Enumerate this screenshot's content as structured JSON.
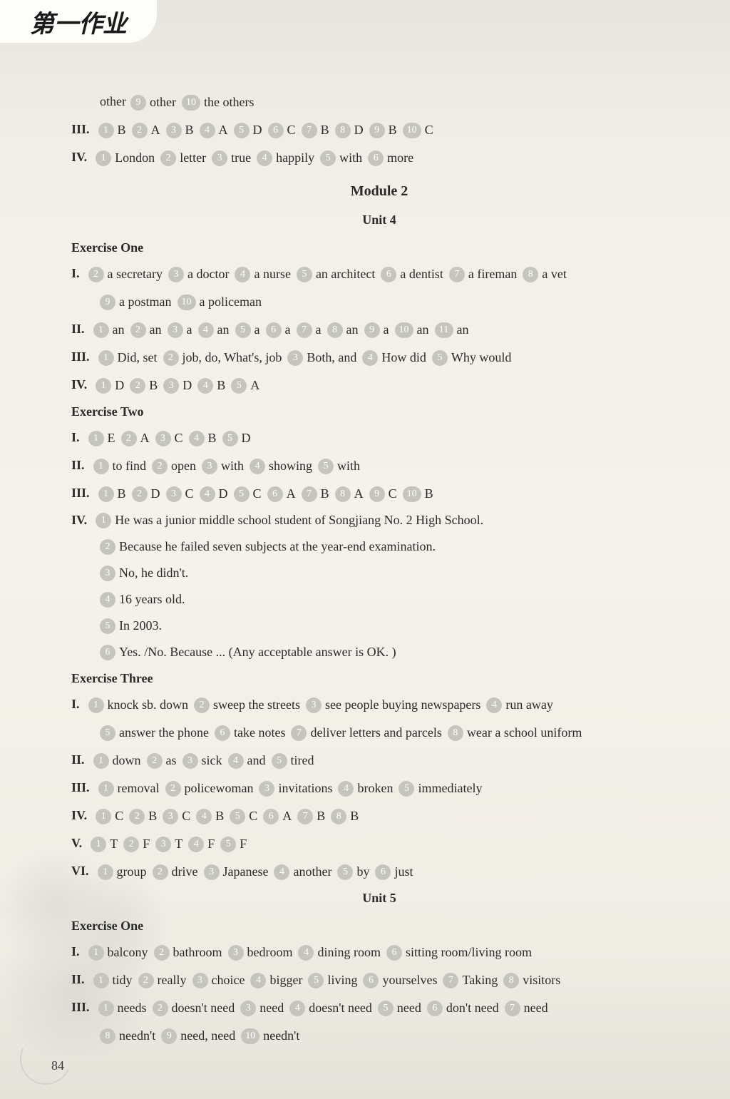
{
  "header": {
    "title": "第一作业"
  },
  "page_number": "84",
  "carryover": {
    "line1_prefix": "other",
    "line1_items": [
      {
        "n": "9",
        "t": "other"
      },
      {
        "n": "10",
        "t": "the others"
      }
    ],
    "iii": {
      "label": "III.",
      "items": [
        {
          "n": "1",
          "t": "B"
        },
        {
          "n": "2",
          "t": "A"
        },
        {
          "n": "3",
          "t": "B"
        },
        {
          "n": "4",
          "t": "A"
        },
        {
          "n": "5",
          "t": "D"
        },
        {
          "n": "6",
          "t": "C"
        },
        {
          "n": "7",
          "t": "B"
        },
        {
          "n": "8",
          "t": "D"
        },
        {
          "n": "9",
          "t": "B"
        },
        {
          "n": "10",
          "t": "C"
        }
      ]
    },
    "iv": {
      "label": "IV.",
      "items": [
        {
          "n": "1",
          "t": "London"
        },
        {
          "n": "2",
          "t": "letter"
        },
        {
          "n": "3",
          "t": "true"
        },
        {
          "n": "4",
          "t": "happily"
        },
        {
          "n": "5",
          "t": "with"
        },
        {
          "n": "6",
          "t": "more"
        }
      ]
    }
  },
  "module2": {
    "title": "Module 2",
    "unit4": {
      "title": "Unit 4",
      "ex1": {
        "title": "Exercise One",
        "i": {
          "label": "I.",
          "row1": [
            {
              "n": "2",
              "t": "a secretary"
            },
            {
              "n": "3",
              "t": "a doctor"
            },
            {
              "n": "4",
              "t": "a nurse"
            },
            {
              "n": "5",
              "t": "an architect"
            },
            {
              "n": "6",
              "t": "a dentist"
            },
            {
              "n": "7",
              "t": "a fireman"
            },
            {
              "n": "8",
              "t": "a vet"
            }
          ],
          "row2": [
            {
              "n": "9",
              "t": "a postman"
            },
            {
              "n": "10",
              "t": "a policeman"
            }
          ]
        },
        "ii": {
          "label": "II.",
          "items": [
            {
              "n": "1",
              "t": "an"
            },
            {
              "n": "2",
              "t": "an"
            },
            {
              "n": "3",
              "t": "a"
            },
            {
              "n": "4",
              "t": "an"
            },
            {
              "n": "5",
              "t": "a"
            },
            {
              "n": "6",
              "t": "a"
            },
            {
              "n": "7",
              "t": "a"
            },
            {
              "n": "8",
              "t": "an"
            },
            {
              "n": "9",
              "t": "a"
            },
            {
              "n": "10",
              "t": "an"
            },
            {
              "n": "11",
              "t": "an"
            }
          ]
        },
        "iii": {
          "label": "III.",
          "items": [
            {
              "n": "1",
              "t": "Did, set"
            },
            {
              "n": "2",
              "t": "job, do, What's, job"
            },
            {
              "n": "3",
              "t": "Both, and"
            },
            {
              "n": "4",
              "t": "How did"
            },
            {
              "n": "5",
              "t": "Why would"
            }
          ]
        },
        "iv": {
          "label": "IV.",
          "items": [
            {
              "n": "1",
              "t": "D"
            },
            {
              "n": "2",
              "t": "B"
            },
            {
              "n": "3",
              "t": "D"
            },
            {
              "n": "4",
              "t": "B"
            },
            {
              "n": "5",
              "t": "A"
            }
          ]
        }
      },
      "ex2": {
        "title": "Exercise Two",
        "i": {
          "label": "I.",
          "items": [
            {
              "n": "1",
              "t": "E"
            },
            {
              "n": "2",
              "t": "A"
            },
            {
              "n": "3",
              "t": "C"
            },
            {
              "n": "4",
              "t": "B"
            },
            {
              "n": "5",
              "t": "D"
            }
          ]
        },
        "ii": {
          "label": "II.",
          "items": [
            {
              "n": "1",
              "t": "to find"
            },
            {
              "n": "2",
              "t": "open"
            },
            {
              "n": "3",
              "t": "with"
            },
            {
              "n": "4",
              "t": "showing"
            },
            {
              "n": "5",
              "t": "with"
            }
          ]
        },
        "iii": {
          "label": "III.",
          "items": [
            {
              "n": "1",
              "t": "B"
            },
            {
              "n": "2",
              "t": "D"
            },
            {
              "n": "3",
              "t": "C"
            },
            {
              "n": "4",
              "t": "D"
            },
            {
              "n": "5",
              "t": "C"
            },
            {
              "n": "6",
              "t": "A"
            },
            {
              "n": "7",
              "t": "B"
            },
            {
              "n": "8",
              "t": "A"
            },
            {
              "n": "9",
              "t": "C"
            },
            {
              "n": "10",
              "t": "B"
            }
          ]
        },
        "iv": {
          "label": "IV.",
          "items": [
            {
              "n": "1",
              "t": "He was a junior middle school student of Songjiang No. 2 High School."
            },
            {
              "n": "2",
              "t": "Because he failed seven subjects at the year-end examination."
            },
            {
              "n": "3",
              "t": "No, he didn't."
            },
            {
              "n": "4",
              "t": "16 years old."
            },
            {
              "n": "5",
              "t": "In 2003."
            },
            {
              "n": "6",
              "t": "Yes. /No. Because ... (Any acceptable answer is OK. )"
            }
          ]
        }
      },
      "ex3": {
        "title": "Exercise Three",
        "i": {
          "label": "I.",
          "row1": [
            {
              "n": "1",
              "t": "knock sb. down"
            },
            {
              "n": "2",
              "t": "sweep the streets"
            },
            {
              "n": "3",
              "t": "see people buying newspapers"
            },
            {
              "n": "4",
              "t": "run away"
            }
          ],
          "row2": [
            {
              "n": "5",
              "t": "answer the phone"
            },
            {
              "n": "6",
              "t": "take notes"
            },
            {
              "n": "7",
              "t": "deliver letters and parcels"
            },
            {
              "n": "8",
              "t": "wear a school uniform"
            }
          ]
        },
        "ii": {
          "label": "II.",
          "items": [
            {
              "n": "1",
              "t": "down"
            },
            {
              "n": "2",
              "t": "as"
            },
            {
              "n": "3",
              "t": "sick"
            },
            {
              "n": "4",
              "t": "and"
            },
            {
              "n": "5",
              "t": "tired"
            }
          ]
        },
        "iii": {
          "label": "III.",
          "items": [
            {
              "n": "1",
              "t": "removal"
            },
            {
              "n": "2",
              "t": "policewoman"
            },
            {
              "n": "3",
              "t": "invitations"
            },
            {
              "n": "4",
              "t": "broken"
            },
            {
              "n": "5",
              "t": "immediately"
            }
          ]
        },
        "iv": {
          "label": "IV.",
          "items": [
            {
              "n": "1",
              "t": "C"
            },
            {
              "n": "2",
              "t": "B"
            },
            {
              "n": "3",
              "t": "C"
            },
            {
              "n": "4",
              "t": "B"
            },
            {
              "n": "5",
              "t": "C"
            },
            {
              "n": "6",
              "t": "A"
            },
            {
              "n": "7",
              "t": "B"
            },
            {
              "n": "8",
              "t": "B"
            }
          ]
        },
        "v": {
          "label": "V.",
          "items": [
            {
              "n": "1",
              "t": "T"
            },
            {
              "n": "2",
              "t": "F"
            },
            {
              "n": "3",
              "t": "T"
            },
            {
              "n": "4",
              "t": "F"
            },
            {
              "n": "5",
              "t": "F"
            }
          ]
        },
        "vi": {
          "label": "VI.",
          "items": [
            {
              "n": "1",
              "t": "group"
            },
            {
              "n": "2",
              "t": "drive"
            },
            {
              "n": "3",
              "t": "Japanese"
            },
            {
              "n": "4",
              "t": "another"
            },
            {
              "n": "5",
              "t": "by"
            },
            {
              "n": "6",
              "t": "just"
            }
          ]
        }
      }
    },
    "unit5": {
      "title": "Unit 5",
      "ex1": {
        "title": "Exercise One",
        "i": {
          "label": "I.",
          "items": [
            {
              "n": "1",
              "t": "balcony"
            },
            {
              "n": "2",
              "t": "bathroom"
            },
            {
              "n": "3",
              "t": "bedroom"
            },
            {
              "n": "4",
              "t": "dining room"
            },
            {
              "n": "6",
              "t": "sitting room/living room"
            }
          ]
        },
        "ii": {
          "label": "II.",
          "items": [
            {
              "n": "1",
              "t": "tidy"
            },
            {
              "n": "2",
              "t": "really"
            },
            {
              "n": "3",
              "t": "choice"
            },
            {
              "n": "4",
              "t": "bigger"
            },
            {
              "n": "5",
              "t": "living"
            },
            {
              "n": "6",
              "t": "yourselves"
            },
            {
              "n": "7",
              "t": "Taking"
            },
            {
              "n": "8",
              "t": "visitors"
            }
          ]
        },
        "iii": {
          "label": "III.",
          "row1": [
            {
              "n": "1",
              "t": "needs"
            },
            {
              "n": "2",
              "t": "doesn't need"
            },
            {
              "n": "3",
              "t": "need"
            },
            {
              "n": "4",
              "t": "doesn't need"
            },
            {
              "n": "5",
              "t": "need"
            },
            {
              "n": "6",
              "t": "don't need"
            },
            {
              "n": "7",
              "t": "need"
            }
          ],
          "row2": [
            {
              "n": "8",
              "t": "needn't"
            },
            {
              "n": "9",
              "t": "need, need"
            },
            {
              "n": "10",
              "t": "needn't"
            }
          ]
        }
      }
    }
  }
}
